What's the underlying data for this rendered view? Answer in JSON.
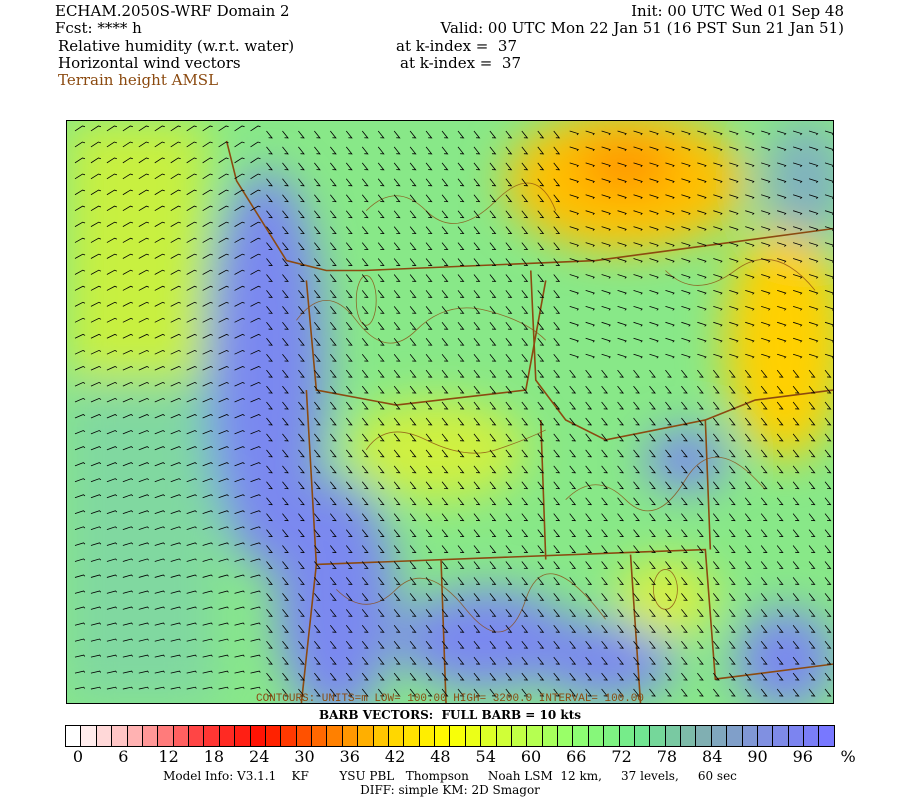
{
  "header": {
    "model_title": "ECHAM.2050S-WRF Domain 2",
    "init": "Init: 00 UTC Wed 01 Sep 48",
    "fcst": "Fcst: **** h",
    "valid": "Valid: 00 UTC Mon 22 Jan 51 (16 PST Sun 21 Jan 51)",
    "field1": "Relative humidity (w.r.t. water)",
    "field1_level": "at k-index =  37",
    "field2": "Horizontal wind vectors",
    "field2_level": "at k-index =  37",
    "field3": "Terrain height AMSL"
  },
  "map": {
    "contour_info": "CONTOURS:  UNITS=m   LOW=  100.00     HIGH=  3200.0     INTERVAL=  100.00",
    "barb_info": "BARB VECTORS:  FULL BARB = 10 kts",
    "terrain_contour_color": "#8b4a10"
  },
  "colorbar": {
    "stops": [
      "#ffffff",
      "#ffb0b0",
      "#ff4040",
      "#ff1000",
      "#ff7000",
      "#ffd000",
      "#ffff00",
      "#c8ff40",
      "#90ff70",
      "#70e890",
      "#80b0b0",
      "#8090e0",
      "#7878ff"
    ],
    "labels": [
      "0",
      "6",
      "12",
      "18",
      "24",
      "30",
      "36",
      "42",
      "48",
      "54",
      "60",
      "66",
      "72",
      "78",
      "84",
      "90",
      "96",
      "%"
    ]
  },
  "footer": {
    "model_info": "Model Info: V3.1.1    KF        YSU PBL   Thompson     Noah LSM  12 km,     37 levels,     60 sec",
    "diff": "DIFF: simple KM: 2D Smagor"
  }
}
